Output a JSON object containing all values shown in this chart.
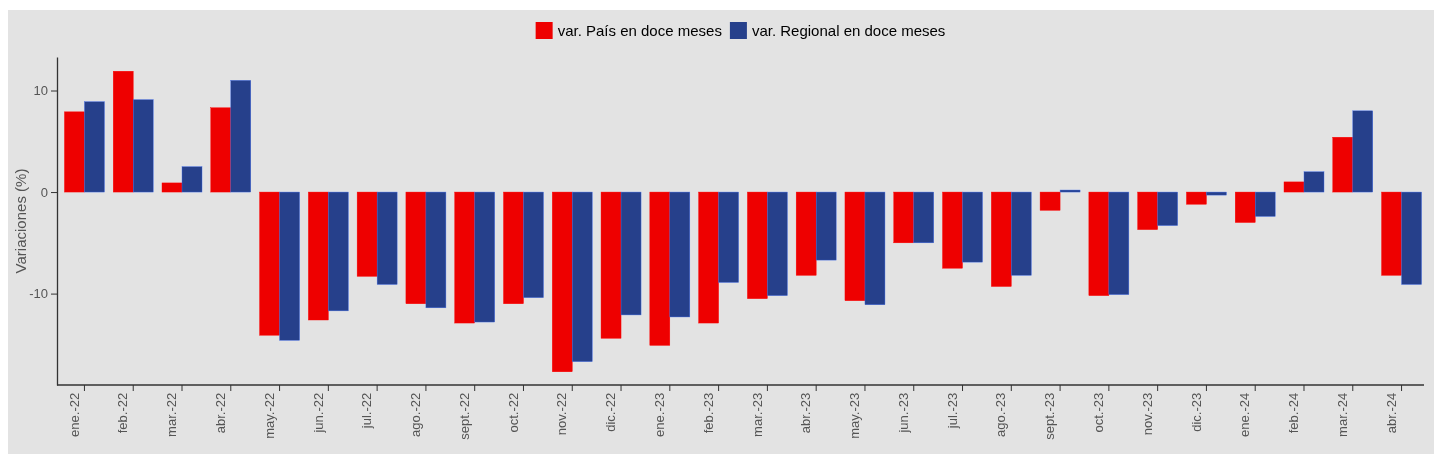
{
  "chart_data": {
    "type": "bar",
    "ylabel": "Variaciones (%)",
    "categories": [
      "ene.-22",
      "feb.-22",
      "mar.-22",
      "abr.-22",
      "may.-22",
      "jun.-22",
      "jul.-22",
      "ago.-22",
      "sept.-22",
      "oct.-22",
      "nov.-22",
      "dic.-22",
      "ene.-23",
      "feb.-23",
      "mar.-23",
      "abr.-23",
      "may.-23",
      "jun.-23",
      "jul.-23",
      "ago.-23",
      "sept.-23",
      "oct.-23",
      "nov.-23",
      "dic.-23",
      "ene.-24",
      "feb.-24",
      "mar.-24",
      "abr.-24"
    ],
    "series": [
      {
        "name": "var. País en doce meses",
        "color": "#ee0000",
        "values": [
          7.9,
          11.9,
          0.9,
          8.3,
          -14.1,
          -12.6,
          -8.3,
          -11.0,
          -12.9,
          -11.0,
          -17.7,
          -14.4,
          -15.1,
          -12.9,
          -10.5,
          -8.2,
          -10.7,
          -5.0,
          -7.5,
          -9.3,
          -1.8,
          -10.2,
          -3.7,
          -1.2,
          -3.0,
          1.0,
          5.4,
          -8.2
        ]
      },
      {
        "name": "var. Regional en doce meses",
        "color": "#26408b",
        "values": [
          8.9,
          9.1,
          2.5,
          11.0,
          -14.6,
          -11.7,
          -9.1,
          -11.4,
          -12.8,
          -10.4,
          -16.7,
          -12.1,
          -12.3,
          -8.9,
          -10.2,
          -6.7,
          -11.1,
          -5.0,
          -6.9,
          -8.2,
          0.2,
          -10.1,
          -3.3,
          -0.3,
          -2.4,
          2.0,
          8.0,
          -9.1
        ]
      }
    ],
    "ylim": [
      -19,
      13.3
    ],
    "yticks": [
      -10,
      0,
      10
    ],
    "grid": false,
    "legend": "top"
  }
}
